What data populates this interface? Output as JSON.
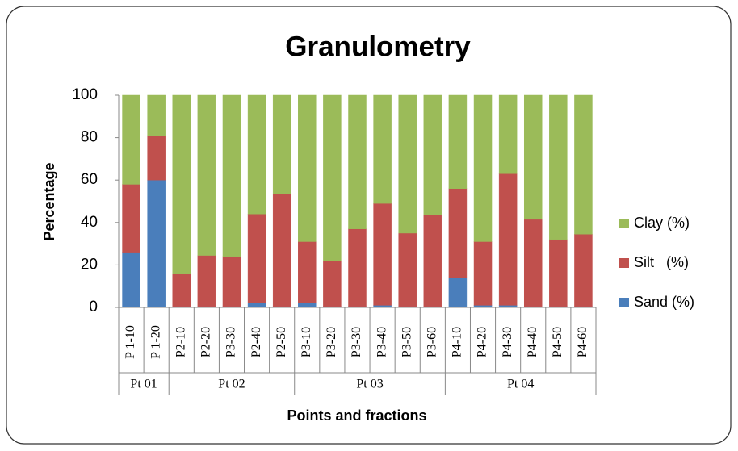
{
  "chart_data": {
    "type": "stacked_bar",
    "title": "Granulometry",
    "y_label": "Percentage",
    "x_label": "Points and fractions",
    "categories": [
      "P 1-10",
      "P 1-20",
      "P2-10",
      "P2-20",
      "P3-30",
      "P2-40",
      "P2-50",
      "P3-10",
      "P3-20",
      "P3-30",
      "P3-40",
      "P3-50",
      "P3-60",
      "P4-10",
      "P4-20",
      "P4-30",
      "P4-40",
      "P4-50",
      "P4-60"
    ],
    "groups": [
      {
        "label": "Pt 01",
        "size": 2
      },
      {
        "label": "Pt 02",
        "size": 5
      },
      {
        "label": "Pt 03",
        "size": 6
      },
      {
        "label": "Pt 04",
        "size": 6
      }
    ],
    "series": [
      {
        "name": "Sand (%)",
        "color": "#4a7ebb",
        "values": [
          26,
          60,
          0.5,
          0.5,
          0.5,
          2,
          0.5,
          2,
          0.5,
          0.5,
          1,
          0.5,
          0.5,
          14,
          1,
          1,
          0.5,
          0.5,
          0.5
        ]
      },
      {
        "name": "Silt   (%)",
        "color": "#c0504d",
        "values": [
          32,
          21,
          15.5,
          24,
          23.5,
          42,
          53,
          29,
          21.5,
          36.5,
          48,
          34.5,
          43,
          42,
          30,
          62,
          41,
          31.5,
          34
        ]
      },
      {
        "name": "Clay (%)",
        "color": "#9bbb59",
        "values": [
          42,
          19,
          84,
          75.5,
          76,
          56,
          46.5,
          69,
          78,
          63,
          51,
          65,
          56.5,
          44,
          69,
          37,
          58.5,
          68,
          65.5
        ]
      }
    ],
    "ylim": [
      0,
      100
    ],
    "yticks": [
      0,
      20,
      40,
      60,
      80,
      100
    ],
    "legend": "right"
  }
}
